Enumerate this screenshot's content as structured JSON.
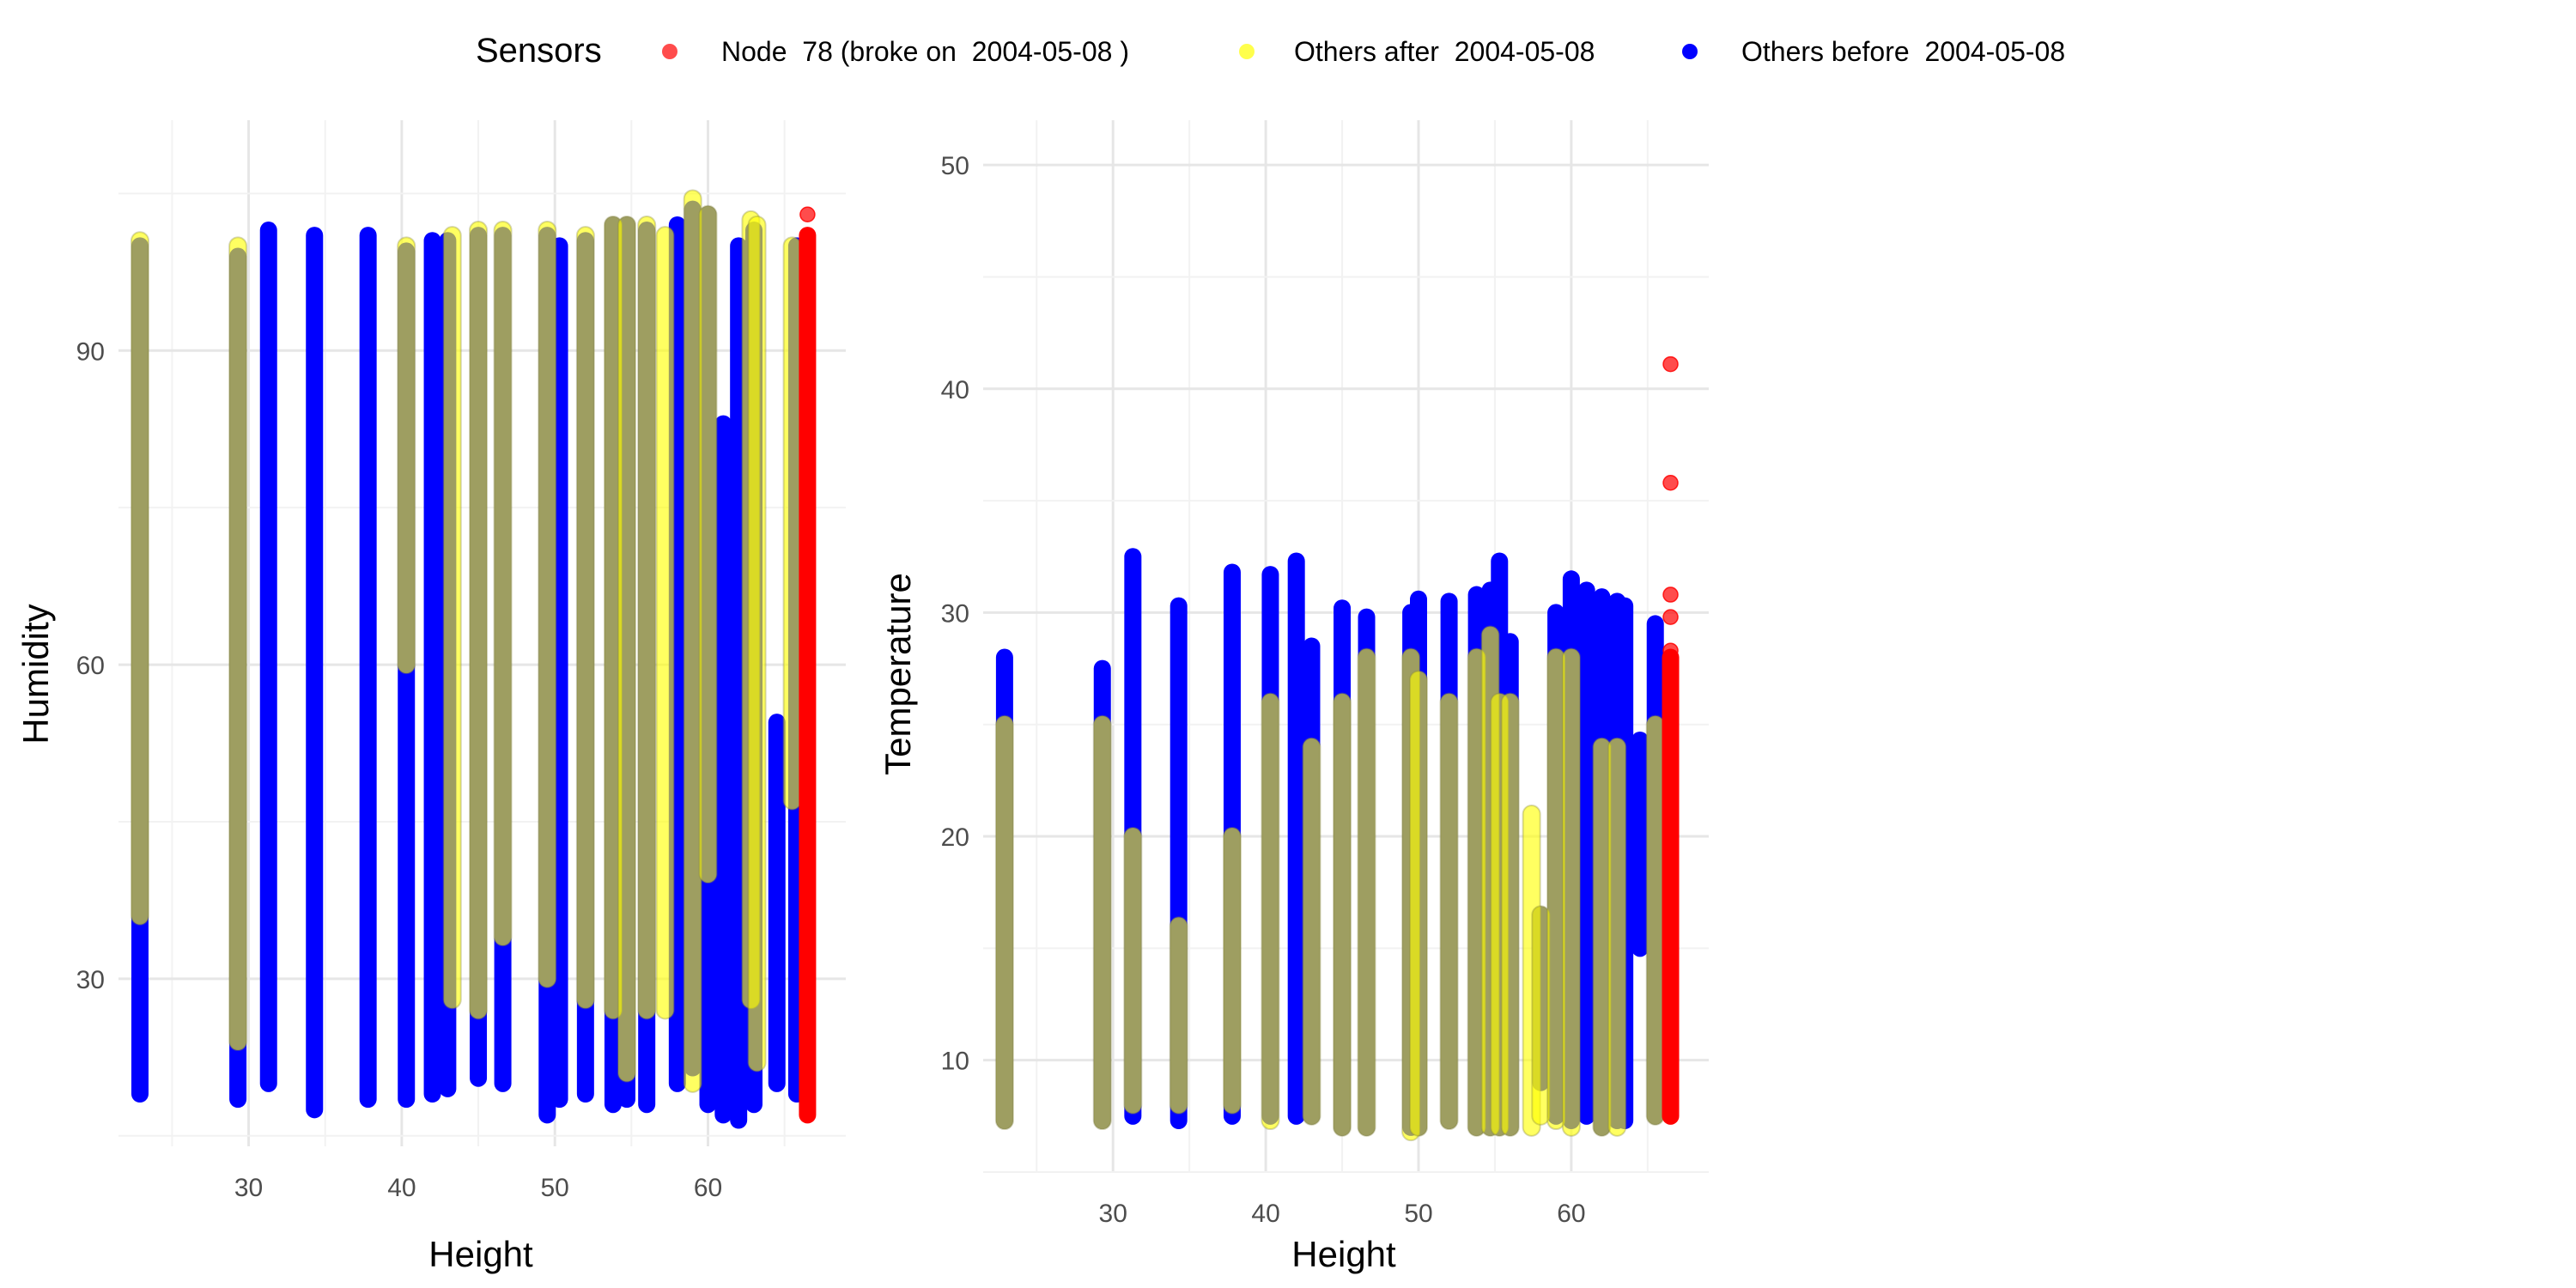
{
  "legend": {
    "title": "Sensors",
    "items": [
      {
        "label": "Node  78 (broke on  2004-05-08 )",
        "color": "#ff0000",
        "alpha": 0.7
      },
      {
        "label": "Others after  2004-05-08",
        "color": "#ffff00",
        "alpha": 0.7
      },
      {
        "label": "Others before  2004-05-08",
        "color": "#0000ff",
        "alpha": 1.0
      }
    ]
  },
  "colors": {
    "node78": "#ff0000",
    "after": "#ffff00",
    "before": "#0000ff",
    "grid_major": "#e6e6e6",
    "grid_minor": "#f2f2f2",
    "text": "#000000",
    "tick_text": "#4d4d4d"
  },
  "chart_data": [
    {
      "type": "scatter",
      "title": "",
      "xlabel": "Height",
      "ylabel": "Humidity",
      "xlim": [
        21.5,
        69
      ],
      "ylim": [
        14,
        112
      ],
      "xticks": [
        30,
        40,
        50,
        60
      ],
      "yticks": [
        30,
        60,
        90
      ],
      "grid": true,
      "series": [
        {
          "name": "Others before  2004-05-08",
          "color_key": "before",
          "columns": [
            {
              "x": 22.9,
              "ymin": 19,
              "ymax": 100
            },
            {
              "x": 29.3,
              "ymin": 18.5,
              "ymax": 99
            },
            {
              "x": 31.3,
              "ymin": 20,
              "ymax": 101.5
            },
            {
              "x": 34.3,
              "ymin": 17.5,
              "ymax": 101
            },
            {
              "x": 37.8,
              "ymin": 18.5,
              "ymax": 101
            },
            {
              "x": 40.3,
              "ymin": 18.5,
              "ymax": 99.5
            },
            {
              "x": 42.0,
              "ymin": 19,
              "ymax": 100.5
            },
            {
              "x": 43.0,
              "ymin": 19.5,
              "ymax": 100.5
            },
            {
              "x": 45.0,
              "ymin": 20.5,
              "ymax": 101
            },
            {
              "x": 46.6,
              "ymin": 20,
              "ymax": 101
            },
            {
              "x": 49.5,
              "ymin": 17,
              "ymax": 101
            },
            {
              "x": 50.3,
              "ymin": 18.5,
              "ymax": 100
            },
            {
              "x": 52.0,
              "ymin": 19,
              "ymax": 100.5
            },
            {
              "x": 53.8,
              "ymin": 18,
              "ymax": 102
            },
            {
              "x": 54.7,
              "ymin": 18.5,
              "ymax": 102
            },
            {
              "x": 56.0,
              "ymin": 18,
              "ymax": 101.5
            },
            {
              "x": 58.0,
              "ymin": 20,
              "ymax": 102
            },
            {
              "x": 59.0,
              "ymin": 21.5,
              "ymax": 103.5
            },
            {
              "x": 60.0,
              "ymin": 18,
              "ymax": 103
            },
            {
              "x": 61.0,
              "ymin": 17,
              "ymax": 83
            },
            {
              "x": 62.0,
              "ymin": 16.5,
              "ymax": 100
            },
            {
              "x": 63.0,
              "ymin": 18,
              "ymax": 101.5
            },
            {
              "x": 64.5,
              "ymin": 20,
              "ymax": 54.5
            },
            {
              "x": 65.8,
              "ymin": 19,
              "ymax": 100
            }
          ]
        },
        {
          "name": "Others after  2004-05-08",
          "color_key": "after",
          "columns": [
            {
              "x": 22.9,
              "ymin": 36,
              "ymax": 100.5
            },
            {
              "x": 29.3,
              "ymin": 24,
              "ymax": 100
            },
            {
              "x": 40.3,
              "ymin": 60,
              "ymax": 100
            },
            {
              "x": 43.3,
              "ymin": 28,
              "ymax": 101
            },
            {
              "x": 45.0,
              "ymin": 27,
              "ymax": 101.5
            },
            {
              "x": 46.6,
              "ymin": 34,
              "ymax": 101.5
            },
            {
              "x": 49.5,
              "ymin": 30,
              "ymax": 101.5
            },
            {
              "x": 52.0,
              "ymin": 28,
              "ymax": 101
            },
            {
              "x": 53.8,
              "ymin": 27,
              "ymax": 102
            },
            {
              "x": 54.7,
              "ymin": 21,
              "ymax": 102
            },
            {
              "x": 56.0,
              "ymin": 27,
              "ymax": 102
            },
            {
              "x": 57.2,
              "ymin": 27,
              "ymax": 101
            },
            {
              "x": 59.0,
              "ymin": 20,
              "ymax": 104.5
            },
            {
              "x": 60.0,
              "ymin": 40,
              "ymax": 103
            },
            {
              "x": 62.8,
              "ymin": 28,
              "ymax": 102.5
            },
            {
              "x": 63.2,
              "ymin": 22,
              "ymax": 102
            },
            {
              "x": 65.5,
              "ymin": 47,
              "ymax": 100
            }
          ]
        },
        {
          "name": "Node  78 (broke on  2004-05-08 )",
          "color_key": "node78",
          "columns": [
            {
              "x": 66.5,
              "ymin": 17,
              "ymax": 101
            }
          ],
          "points": [
            {
              "x": 66.5,
              "y": 103
            },
            {
              "x": 66.5,
              "y": 17
            }
          ]
        }
      ]
    },
    {
      "type": "scatter",
      "title": "",
      "xlabel": "Height",
      "ylabel": "Temperature",
      "xlim": [
        21.5,
        69
      ],
      "ylim": [
        5,
        52
      ],
      "xticks": [
        30,
        40,
        50,
        60
      ],
      "yticks": [
        10,
        20,
        30,
        40,
        50
      ],
      "grid": true,
      "series": [
        {
          "name": "Others before  2004-05-08",
          "color_key": "before",
          "columns": [
            {
              "x": 22.9,
              "ymin": 7.3,
              "ymax": 28
            },
            {
              "x": 29.3,
              "ymin": 7.3,
              "ymax": 27.5
            },
            {
              "x": 31.3,
              "ymin": 7.5,
              "ymax": 32.5
            },
            {
              "x": 34.3,
              "ymin": 7.3,
              "ymax": 30.3
            },
            {
              "x": 37.8,
              "ymin": 7.5,
              "ymax": 31.8
            },
            {
              "x": 40.3,
              "ymin": 7.5,
              "ymax": 31.7
            },
            {
              "x": 42.0,
              "ymin": 7.5,
              "ymax": 32.3
            },
            {
              "x": 43.0,
              "ymin": 7.5,
              "ymax": 28.5
            },
            {
              "x": 45.0,
              "ymin": 7.0,
              "ymax": 30.2
            },
            {
              "x": 46.6,
              "ymin": 7.0,
              "ymax": 29.8
            },
            {
              "x": 49.5,
              "ymin": 7.0,
              "ymax": 30
            },
            {
              "x": 50.0,
              "ymin": 7.0,
              "ymax": 30.6
            },
            {
              "x": 52.0,
              "ymin": 7.3,
              "ymax": 30.5
            },
            {
              "x": 53.8,
              "ymin": 7.0,
              "ymax": 30.8
            },
            {
              "x": 54.7,
              "ymin": 7.0,
              "ymax": 31
            },
            {
              "x": 55.3,
              "ymin": 7.0,
              "ymax": 32.3
            },
            {
              "x": 56.0,
              "ymin": 7.0,
              "ymax": 28.7
            },
            {
              "x": 58.0,
              "ymin": 9.0,
              "ymax": 16.5
            },
            {
              "x": 59.0,
              "ymin": 7.5,
              "ymax": 30
            },
            {
              "x": 60.0,
              "ymin": 7.3,
              "ymax": 31.5
            },
            {
              "x": 61.0,
              "ymin": 7.5,
              "ymax": 31
            },
            {
              "x": 62.0,
              "ymin": 7.0,
              "ymax": 30.7
            },
            {
              "x": 63.0,
              "ymin": 7.3,
              "ymax": 30.5
            },
            {
              "x": 63.5,
              "ymin": 7.3,
              "ymax": 30.3
            },
            {
              "x": 64.5,
              "ymin": 15,
              "ymax": 24.3
            },
            {
              "x": 65.5,
              "ymin": 7.5,
              "ymax": 29.5
            }
          ]
        },
        {
          "name": "Others after  2004-05-08",
          "color_key": "after",
          "columns": [
            {
              "x": 22.9,
              "ymin": 7.3,
              "ymax": 25
            },
            {
              "x": 29.3,
              "ymin": 7.3,
              "ymax": 25
            },
            {
              "x": 31.3,
              "ymin": 8,
              "ymax": 20
            },
            {
              "x": 34.3,
              "ymin": 8,
              "ymax": 16
            },
            {
              "x": 37.8,
              "ymin": 8,
              "ymax": 20
            },
            {
              "x": 40.3,
              "ymin": 7.3,
              "ymax": 26
            },
            {
              "x": 43.0,
              "ymin": 7.5,
              "ymax": 24
            },
            {
              "x": 45.0,
              "ymin": 7.0,
              "ymax": 26
            },
            {
              "x": 46.6,
              "ymin": 7.0,
              "ymax": 28
            },
            {
              "x": 49.5,
              "ymin": 6.8,
              "ymax": 28
            },
            {
              "x": 50.0,
              "ymin": 7.0,
              "ymax": 27
            },
            {
              "x": 52.0,
              "ymin": 7.3,
              "ymax": 26
            },
            {
              "x": 53.8,
              "ymin": 7.0,
              "ymax": 28
            },
            {
              "x": 54.7,
              "ymin": 7.0,
              "ymax": 29
            },
            {
              "x": 55.3,
              "ymin": 7.0,
              "ymax": 26
            },
            {
              "x": 56.0,
              "ymin": 7.0,
              "ymax": 26
            },
            {
              "x": 57.4,
              "ymin": 7.0,
              "ymax": 21
            },
            {
              "x": 58.0,
              "ymin": 7.5,
              "ymax": 16.5
            },
            {
              "x": 59.0,
              "ymin": 7.3,
              "ymax": 28
            },
            {
              "x": 60.0,
              "ymin": 7.0,
              "ymax": 28
            },
            {
              "x": 62.0,
              "ymin": 7.0,
              "ymax": 24
            },
            {
              "x": 63.0,
              "ymin": 7.0,
              "ymax": 24
            },
            {
              "x": 65.5,
              "ymin": 7.5,
              "ymax": 25
            }
          ]
        },
        {
          "name": "Node  78 (broke on  2004-05-08 )",
          "color_key": "node78",
          "columns": [
            {
              "x": 66.5,
              "ymin": 7.5,
              "ymax": 28
            }
          ],
          "points": [
            {
              "x": 66.5,
              "y": 41.1
            },
            {
              "x": 66.5,
              "y": 35.8
            },
            {
              "x": 66.5,
              "y": 30.8
            },
            {
              "x": 66.5,
              "y": 29.8
            },
            {
              "x": 66.5,
              "y": 28.3
            }
          ]
        }
      ]
    }
  ]
}
